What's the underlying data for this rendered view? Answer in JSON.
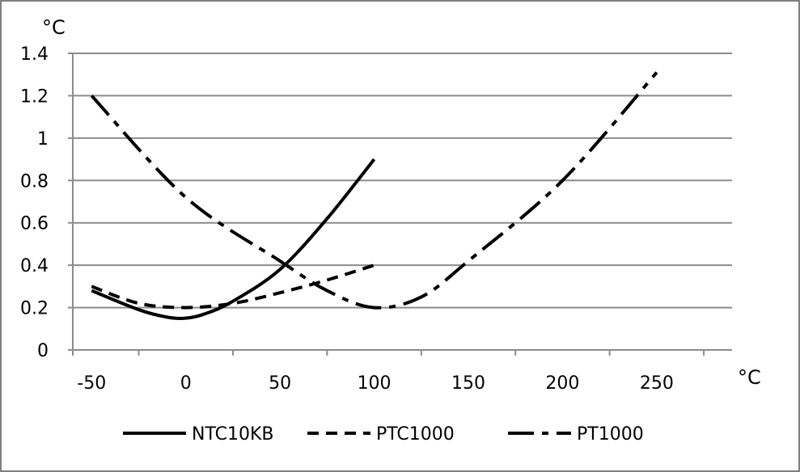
{
  "chart_data": {
    "type": "line",
    "y_unit": "°C",
    "x_unit": "°C",
    "xlim": [
      -60,
      290
    ],
    "ylim": [
      0,
      1.4
    ],
    "x_ticks": [
      -50,
      0,
      50,
      100,
      150,
      200,
      250
    ],
    "y_ticks": [
      0,
      0.2,
      0.4,
      0.6,
      0.8,
      1,
      1.2,
      1.4
    ],
    "x_tick_labels": [
      "-50",
      "0",
      "50",
      "100",
      "150",
      "200",
      "250"
    ],
    "y_tick_labels": [
      "0",
      "0.2",
      "0.4",
      "0.6",
      "0.8",
      "1",
      "1.2",
      "1.4"
    ],
    "grid": "horizontal",
    "legend_position": "bottom",
    "series": [
      {
        "name": "NTC10KB",
        "style": "solid",
        "x": [
          -50,
          -25,
          -10,
          0,
          10,
          25,
          50,
          75,
          100
        ],
        "y": [
          0.28,
          0.19,
          0.155,
          0.15,
          0.17,
          0.23,
          0.38,
          0.62,
          0.9
        ]
      },
      {
        "name": "PTC1000",
        "style": "dash",
        "x": [
          -50,
          -25,
          0,
          25,
          50,
          75,
          100
        ],
        "y": [
          0.3,
          0.22,
          0.2,
          0.22,
          0.27,
          0.33,
          0.4
        ]
      },
      {
        "name": "PT1000",
        "style": "long-dash-dot",
        "x": [
          -50,
          0,
          50,
          75,
          100,
          125,
          150,
          200,
          250
        ],
        "y": [
          1.2,
          0.72,
          0.42,
          0.28,
          0.2,
          0.25,
          0.42,
          0.8,
          1.31
        ]
      }
    ]
  }
}
